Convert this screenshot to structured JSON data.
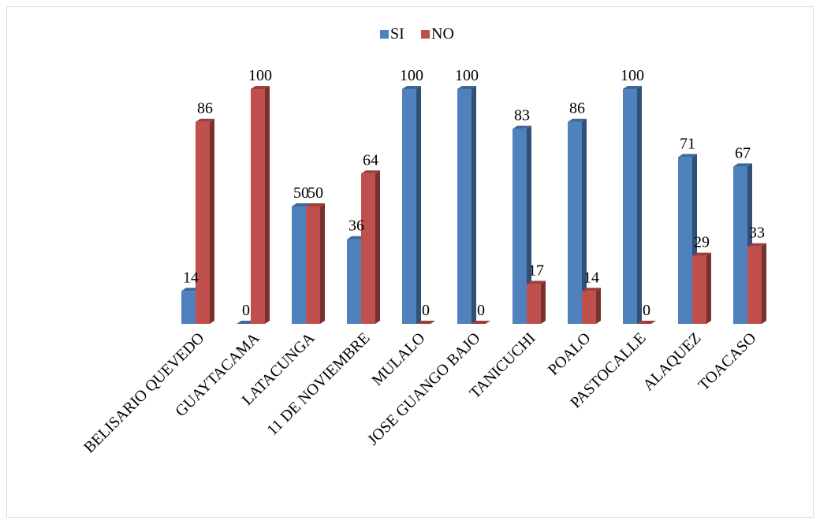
{
  "chart_data": {
    "type": "bar",
    "categories": [
      "BELISARIO QUEVEDO",
      "GUAYTACAMA",
      "LATACUNGA",
      "11 DE NOVIEMBRE",
      "MULALO",
      "JOSE GUANGO BAJO",
      "TANICUCHI",
      "POALO",
      "PASTOCALLE",
      "ALAQUEZ",
      "TOACASO"
    ],
    "series": [
      {
        "name": "SI",
        "values": [
          14,
          0,
          50,
          36,
          100,
          100,
          83,
          86,
          100,
          71,
          67
        ],
        "color": "#4f81bd"
      },
      {
        "name": "NO",
        "values": [
          86,
          100,
          50,
          64,
          0,
          0,
          17,
          14,
          0,
          29,
          33
        ],
        "color": "#c0504d"
      }
    ],
    "title": "",
    "xlabel": "",
    "ylabel": "",
    "ylim": [
      0,
      100
    ],
    "grid": false,
    "legend_position": "top-center",
    "style": "3d-clustered-column"
  }
}
